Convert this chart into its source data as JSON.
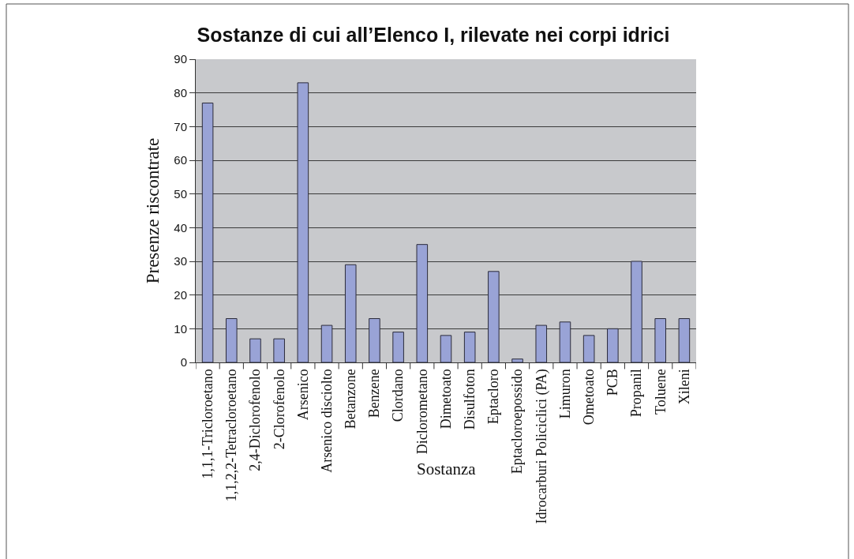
{
  "chart_data": {
    "type": "bar",
    "title": "Sostanze di cui all’Elenco I, rilevate nei corpi idrici",
    "xlabel": "Sostanza",
    "ylabel": "Presenze riscontrate",
    "categories": [
      "1,1,1-Tricloroetano",
      "1,1,2,2-Tetracloroetano",
      "2,4-Diclorofenolo",
      "2-Clorofenolo",
      "Arsenico",
      "Arsenico disciolto",
      "Betanzone",
      "Benzene",
      "Clordano",
      "Diclorometano",
      "Dimetoato",
      "Disulfoton",
      "Eptacloro",
      "Eptacloroepossido",
      "Idrocarburi Policiclici (PA)",
      "Limuron",
      "Ometoato",
      "PCB",
      "Propanil",
      "Toluene",
      "Xileni"
    ],
    "values": [
      77,
      13,
      7,
      7,
      83,
      11,
      29,
      13,
      9,
      35,
      8,
      9,
      27,
      1,
      11,
      12,
      8,
      10,
      30,
      13,
      13
    ],
    "color": "#99a3d6",
    "ylim": [
      0,
      90
    ],
    "yticks": [
      0,
      10,
      20,
      30,
      40,
      50,
      60,
      70,
      80,
      90
    ],
    "grid": "y"
  }
}
